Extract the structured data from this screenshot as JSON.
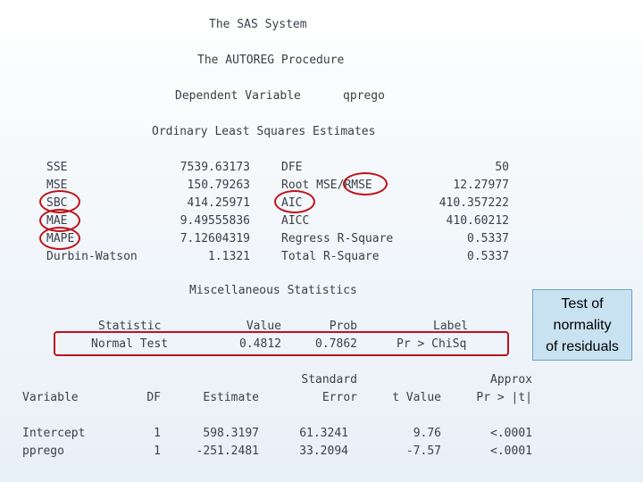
{
  "header": {
    "system": "The SAS System",
    "procedure": "The AUTOREG Procedure",
    "dependent_label": "Dependent Variable",
    "dependent_value": "qprego",
    "section_ols": "Ordinary Least Squares Estimates"
  },
  "ols": {
    "left": [
      {
        "label": "SSE",
        "value": "7539.63173"
      },
      {
        "label": "MSE",
        "value": "150.79263"
      },
      {
        "label": "SBC",
        "value": "414.25971"
      },
      {
        "label": "MAE",
        "value": "9.49555836"
      },
      {
        "label": "MAPE",
        "value": "7.12604319"
      },
      {
        "label": "Durbin-Watson",
        "value": "1.1321"
      }
    ],
    "right": [
      {
        "label": "DFE",
        "value": "50"
      },
      {
        "label": "Root MSE/RMSE",
        "value": "12.27977"
      },
      {
        "label": "AIC",
        "value": "410.357222"
      },
      {
        "label": "AICC",
        "value": "410.60212"
      },
      {
        "label": "Regress R-Square",
        "value": "0.5337"
      },
      {
        "label": "Total R-Square",
        "value": "0.5337"
      }
    ]
  },
  "misc": {
    "title": "Miscellaneous Statistics",
    "headers": {
      "statistic": "Statistic",
      "value": "Value",
      "prob": "Prob",
      "label": "Label"
    },
    "row": {
      "statistic": "Normal Test",
      "value": "0.4812",
      "prob": "0.7862",
      "label": "Pr > ChiSq"
    }
  },
  "params": {
    "headers_top": {
      "std": "Standard",
      "approx": "Approx"
    },
    "headers": {
      "variable": "Variable",
      "df": "DF",
      "estimate": "Estimate",
      "error": "Error",
      "tvalue": "t Value",
      "pr": "Pr > |t|"
    },
    "rows": [
      {
        "variable": "Intercept",
        "df": "1",
        "estimate": "598.3197",
        "error": "61.3241",
        "tvalue": "9.76",
        "pr": "<.0001"
      },
      {
        "variable": "pprego",
        "df": "1",
        "estimate": "-251.2481",
        "error": "33.2094",
        "tvalue": "-7.57",
        "pr": "<.0001"
      }
    ]
  },
  "callout": {
    "line1": "Test of",
    "line2": "normality",
    "line3": "of residuals"
  },
  "colors": {
    "annotation": "#c0121b",
    "callout_bg": "#c9e2f1"
  }
}
